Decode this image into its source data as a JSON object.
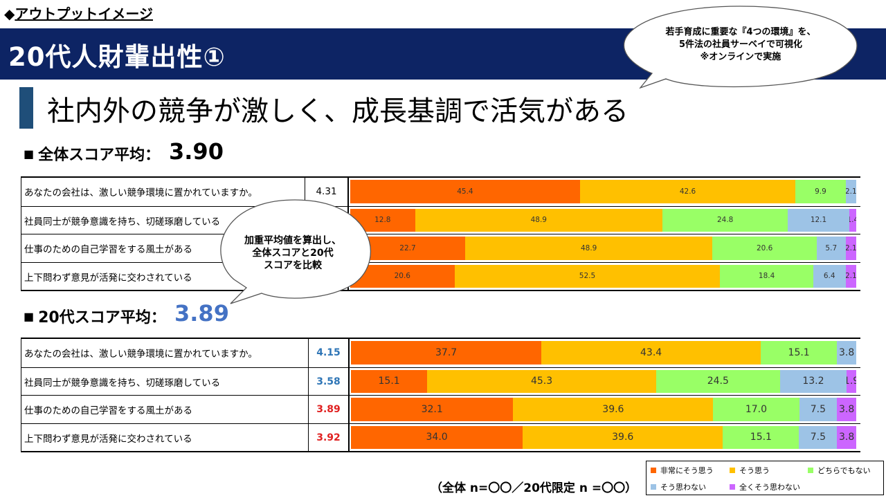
{
  "header": {
    "top_label_bullet": "◆",
    "top_label": "アウトプットイメージ",
    "title": "20代人財輩出性①",
    "callout_lines": [
      "若手育成に重要な『4つの環境』を、",
      "5件法の社員サーベイで可視化",
      "※オンラインで実施"
    ]
  },
  "headline": "社内外の競争が激しく、成長基調で活気がある",
  "overall": {
    "label": "全体スコア平均：",
    "score": "3.90",
    "rows": [
      {
        "question": "あなたの会社は、激しい競争環境に置かれていますか。",
        "score": "4.31",
        "values": [
          45.4,
          42.6,
          9.9,
          2.1,
          0
        ],
        "labels": [
          "45.4",
          "42.6",
          "9.9",
          "2.1",
          ""
        ]
      },
      {
        "question": "社員同士が競争意識を持ち、切磋琢磨している",
        "score": "",
        "values": [
          12.8,
          48.9,
          24.8,
          12.1,
          1.4
        ],
        "labels": [
          "12.8",
          "48.9",
          "24.8",
          "12.1",
          "1.4"
        ]
      },
      {
        "question": "仕事のための自己学習をする風土がある",
        "score": "",
        "values": [
          22.7,
          48.9,
          20.6,
          5.7,
          2.1
        ],
        "labels": [
          "22.7",
          "48.9",
          "20.6",
          "5.7",
          "2.1"
        ]
      },
      {
        "question": "上下問わず意見が活発に交わされている",
        "score": "",
        "values": [
          20.6,
          52.5,
          18.4,
          6.4,
          2.1
        ],
        "labels": [
          "20.6",
          "52.5",
          "18.4",
          "6.4",
          "2.1"
        ]
      }
    ]
  },
  "young": {
    "label": "20代スコア平均：",
    "score": "3.89",
    "rows": [
      {
        "question": "あなたの会社は、激しい競争環境に置かれていますか。",
        "score": "4.15",
        "score_color": "#2e75b6",
        "values": [
          37.7,
          43.4,
          15.1,
          3.8,
          0
        ],
        "labels": [
          "37.7",
          "43.4",
          "15.1",
          "3.8",
          ""
        ]
      },
      {
        "question": "社員同士が競争意識を持ち、切磋琢磨している",
        "score": "3.58",
        "score_color": "#2e75b6",
        "values": [
          15.1,
          45.3,
          24.5,
          13.2,
          1.9
        ],
        "labels": [
          "15.1",
          "45.3",
          "24.5",
          "13.2",
          "1.9"
        ]
      },
      {
        "question": "仕事のための自己学習をする風土がある",
        "score": "3.89",
        "score_color": "#e02020",
        "values": [
          32.1,
          39.6,
          17.0,
          7.5,
          3.8
        ],
        "labels": [
          "32.1",
          "39.6",
          "17.0",
          "7.5",
          "3.8"
        ]
      },
      {
        "question": "上下問わず意見が活発に交わされている",
        "score": "3.92",
        "score_color": "#e02020",
        "values": [
          34.0,
          39.6,
          15.1,
          7.5,
          3.8
        ],
        "labels": [
          "34.0",
          "39.6",
          "15.1",
          "7.5",
          "3.8"
        ]
      }
    ]
  },
  "mid_callout_lines": [
    "加重平均値を算出し、",
    "全体スコアと20代",
    "スコアを比較"
  ],
  "legend": [
    {
      "label": "非常にそう思う",
      "color": "#ff6600"
    },
    {
      "label": "そう思う",
      "color": "#ffc000"
    },
    {
      "label": "どちらでもない",
      "color": "#99ff66"
    },
    {
      "label": "そう思わない",
      "color": "#9dc3e6"
    },
    {
      "label": "全くそう思わない",
      "color": "#cc66ff"
    }
  ],
  "footnote": "（全体 n=〇〇／20代限定 n =〇〇）",
  "chart_data": [
    {
      "type": "bar",
      "stacked": true,
      "orientation": "horizontal",
      "title": "全体スコア平均：3.90",
      "categories": [
        "あなたの会社は、激しい競争環境に置かれていますか。",
        "社員同士が競争意識を持ち、切磋琢磨している",
        "仕事のための自己学習をする風土がある",
        "上下問わず意見が活発に交わされている"
      ],
      "series": [
        {
          "name": "非常にそう思う",
          "values": [
            45.4,
            12.8,
            22.7,
            20.6
          ]
        },
        {
          "name": "そう思う",
          "values": [
            42.6,
            48.9,
            48.9,
            52.5
          ]
        },
        {
          "name": "どちらでもない",
          "values": [
            9.9,
            24.8,
            20.6,
            18.4
          ]
        },
        {
          "name": "そう思わない",
          "values": [
            2.1,
            12.1,
            5.7,
            6.4
          ]
        },
        {
          "name": "全くそう思わない",
          "values": [
            0,
            1.4,
            2.1,
            2.1
          ]
        }
      ],
      "xlim": [
        0,
        100
      ]
    },
    {
      "type": "bar",
      "stacked": true,
      "orientation": "horizontal",
      "title": "20代スコア平均：3.89",
      "categories": [
        "あなたの会社は、激しい競争環境に置かれていますか。",
        "社員同士が競争意識を持ち、切磋琢磨している",
        "仕事のための自己学習をする風土がある",
        "上下問わず意見が活発に交わされている"
      ],
      "series": [
        {
          "name": "非常にそう思う",
          "values": [
            37.7,
            15.1,
            32.1,
            34.0
          ]
        },
        {
          "name": "そう思う",
          "values": [
            43.4,
            45.3,
            39.6,
            39.6
          ]
        },
        {
          "name": "どちらでもない",
          "values": [
            15.1,
            24.5,
            17.0,
            15.1
          ]
        },
        {
          "name": "そう思わない",
          "values": [
            3.8,
            13.2,
            7.5,
            7.5
          ]
        },
        {
          "name": "全くそう思わない",
          "values": [
            0,
            1.9,
            3.8,
            3.8
          ]
        }
      ],
      "xlim": [
        0,
        100
      ]
    }
  ]
}
